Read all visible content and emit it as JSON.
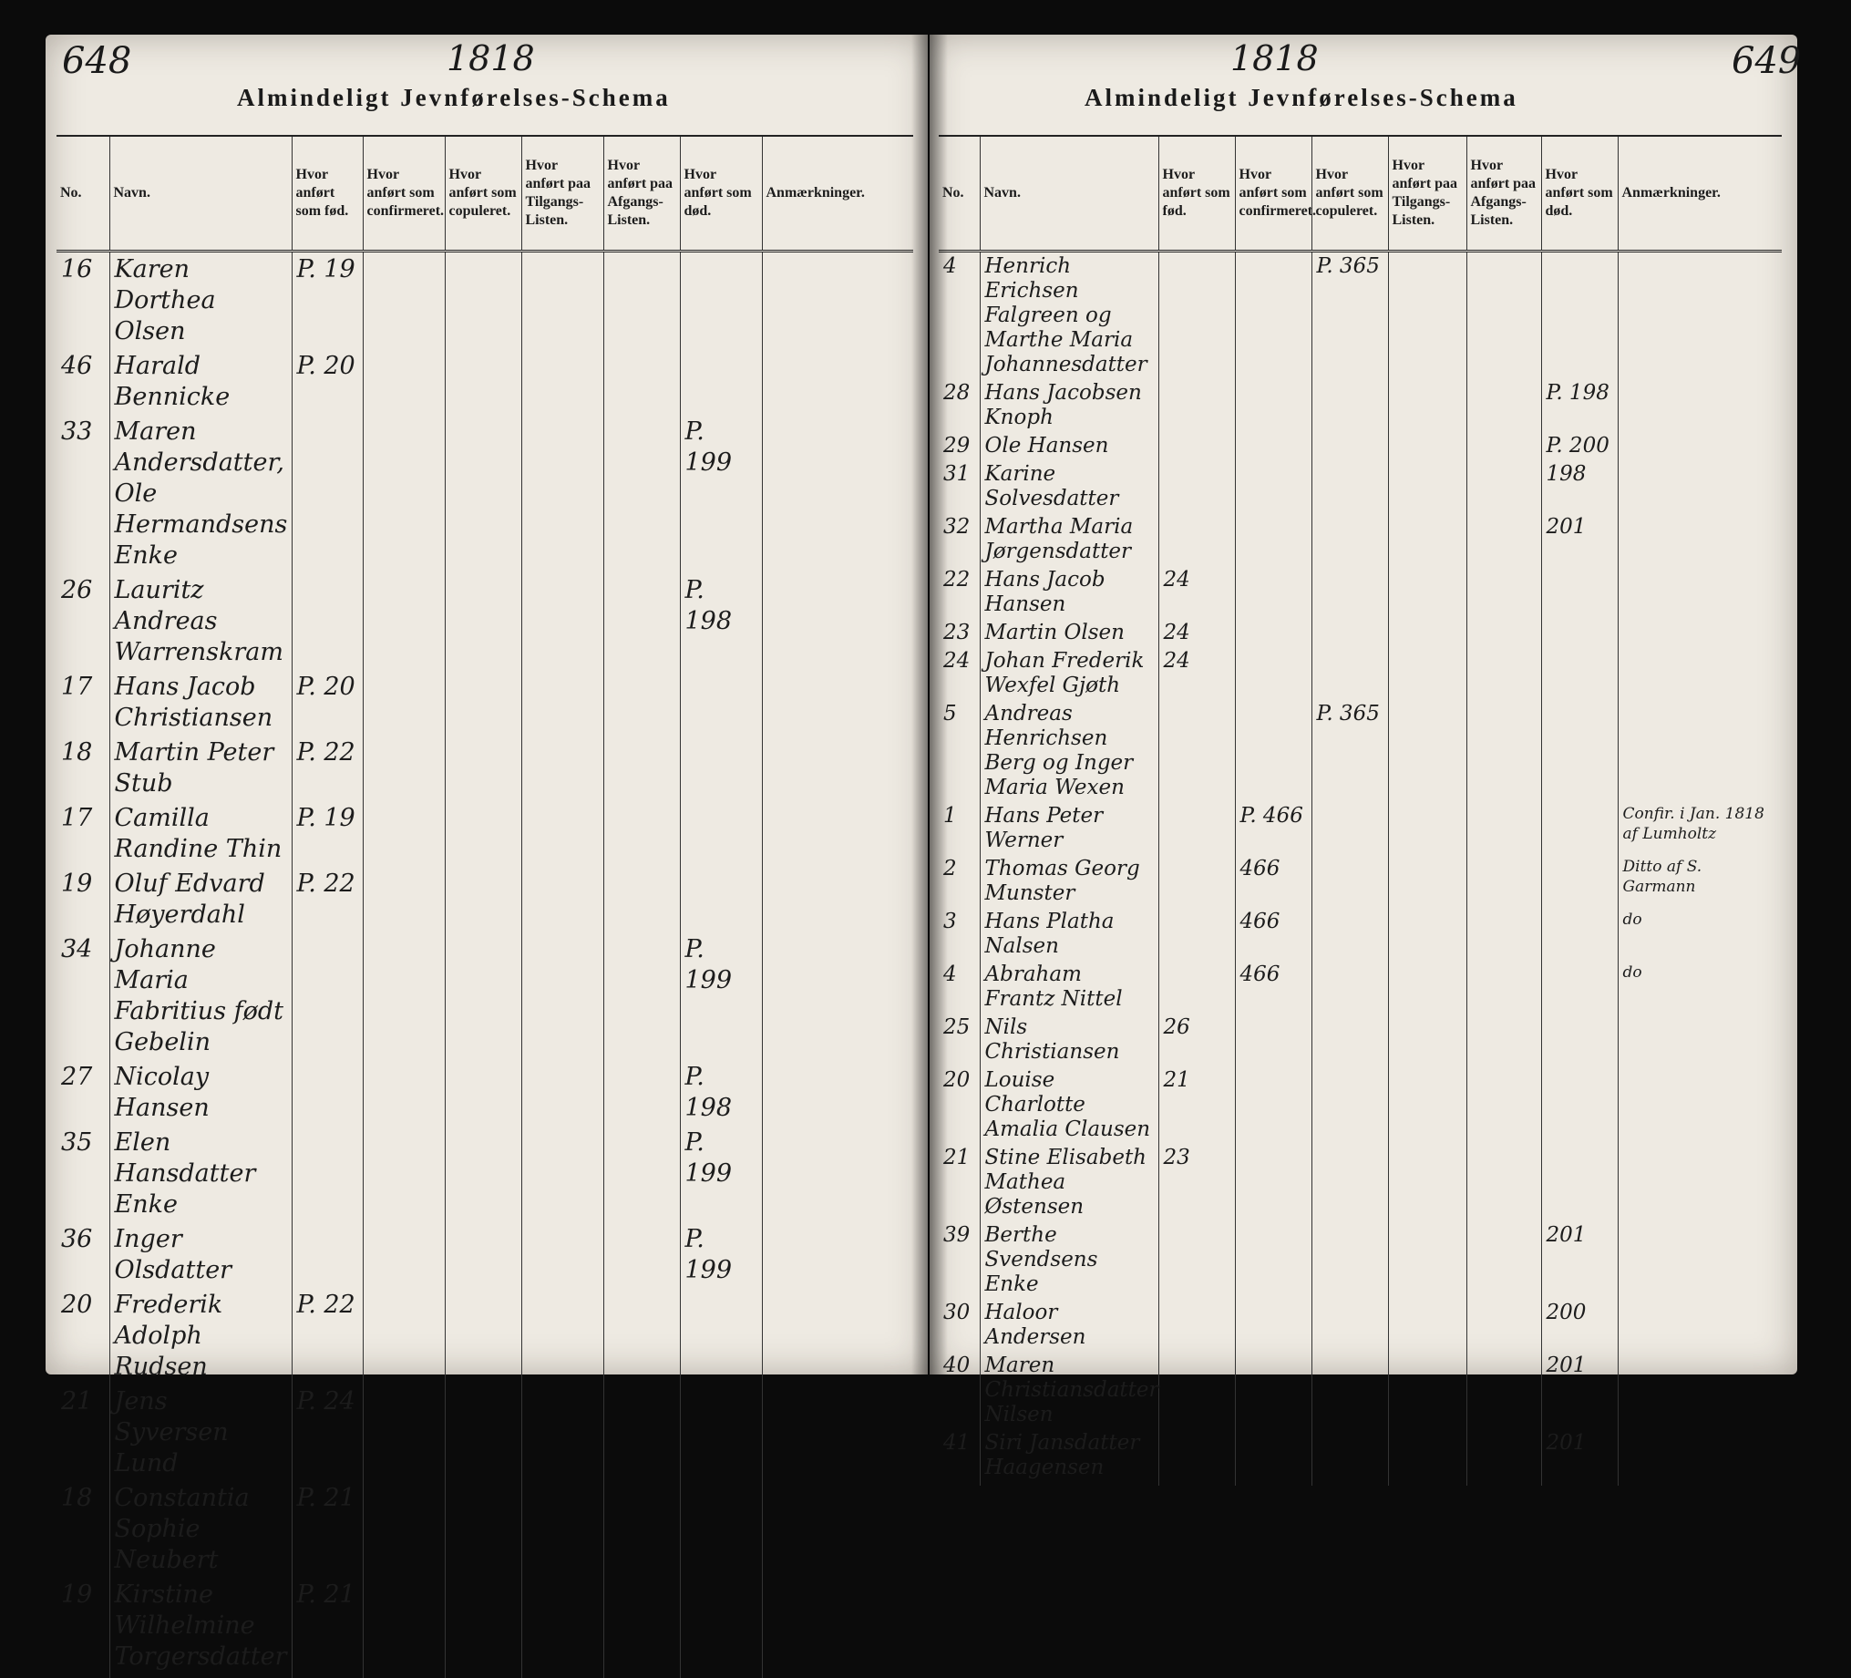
{
  "left_page": {
    "page_number": "648",
    "year": "1818",
    "title": "Almindeligt Jevnførelses-Schema",
    "columns": [
      "No.",
      "Navn.",
      "Hvor anført som fød.",
      "Hvor anført som confirmeret.",
      "Hvor anført som copuleret.",
      "Hvor anført paa Tilgangs-Listen.",
      "Hvor anført paa Afgangs-Listen.",
      "Hvor anført som død.",
      "Anmærkninger."
    ],
    "rows": [
      {
        "no": "16",
        "name": "Karen Dorthea Olsen",
        "born": "P. 19"
      },
      {
        "no": "46",
        "name": "Harald Bennicke",
        "born": "P. 20"
      },
      {
        "no": "33",
        "name": "Maren Andersdatter, Ole Hermandsens Enke",
        "died": "P. 199"
      },
      {
        "no": "26",
        "name": "Lauritz Andreas Warrenskram",
        "died": "P. 198"
      },
      {
        "no": "17",
        "name": "Hans Jacob Christiansen",
        "born": "P. 20"
      },
      {
        "no": "18",
        "name": "Martin Peter Stub",
        "born": "P. 22"
      },
      {
        "no": "17",
        "name": "Camilla Randine Thin",
        "born": "P. 19"
      },
      {
        "no": "19",
        "name": "Oluf Edvard Høyerdahl",
        "born": "P. 22"
      },
      {
        "no": "34",
        "name": "Johanne Maria Fabritius født Gebelin",
        "died": "P. 199"
      },
      {
        "no": "27",
        "name": "Nicolay Hansen",
        "died": "P. 198"
      },
      {
        "no": "35",
        "name": "Elen Hansdatter Enke",
        "died": "P. 199"
      },
      {
        "no": "36",
        "name": "Inger Olsdatter",
        "died": "P. 199"
      },
      {
        "no": "20",
        "name": "Frederik Adolph Rudsen",
        "born": "P. 22"
      },
      {
        "no": "21",
        "name": "Jens Syversen Lund",
        "born": "P. 24"
      },
      {
        "no": "18",
        "name": "Constantia Sophie Neubert",
        "born": "P. 21"
      },
      {
        "no": "19",
        "name": "Kirstine Wilhelmine Torgersdatter",
        "born": "P. 21"
      }
    ]
  },
  "right_page": {
    "page_number": "649",
    "year": "1818",
    "title": "Almindeligt Jevnførelses-Schema",
    "columns": [
      "No.",
      "Navn.",
      "Hvor anført som fød.",
      "Hvor anført som confirmeret.",
      "Hvor anført som copuleret.",
      "Hvor anført paa Tilgangs-Listen.",
      "Hvor anført paa Afgangs-Listen.",
      "Hvor anført som død.",
      "Anmærkninger."
    ],
    "rows": [
      {
        "no": "4",
        "name": "Henrich Erichsen Falgreen og Marthe Maria Johannesdatter",
        "married": "P. 365"
      },
      {
        "no": "28",
        "name": "Hans Jacobsen Knoph",
        "died": "P. 198"
      },
      {
        "no": "29",
        "name": "Ole Hansen",
        "died": "P. 200"
      },
      {
        "no": "31",
        "name": "Karine Solvesdatter",
        "died": "198"
      },
      {
        "no": "32",
        "name": "Martha Maria Jørgensdatter",
        "died": "201"
      },
      {
        "no": "22",
        "name": "Hans Jacob Hansen",
        "born": "24"
      },
      {
        "no": "23",
        "name": "Martin Olsen",
        "born": "24"
      },
      {
        "no": "24",
        "name": "Johan Frederik Wexfel Gjøth",
        "born": "24"
      },
      {
        "no": "5",
        "name": "Andreas Henrichsen Berg og Inger Maria Wexen",
        "married": "P. 365"
      },
      {
        "no": "1",
        "name": "Hans Peter Werner",
        "confirmed": "P. 466",
        "note": "Confir. i Jan. 1818 af Lumholtz"
      },
      {
        "no": "2",
        "name": "Thomas Georg Munster",
        "confirmed": "466",
        "note": "Ditto af S. Garmann"
      },
      {
        "no": "3",
        "name": "Hans Platha Nalsen",
        "confirmed": "466",
        "note": "do"
      },
      {
        "no": "4",
        "name": "Abraham Frantz Nittel",
        "confirmed": "466",
        "note": "do"
      },
      {
        "no": "25",
        "name": "Nils Christiansen",
        "born": "26"
      },
      {
        "no": "20",
        "name": "Louise Charlotte Amalia Clausen",
        "born": "21"
      },
      {
        "no": "21",
        "name": "Stine Elisabeth Mathea Østensen",
        "born": "23"
      },
      {
        "no": "39",
        "name": "Berthe Svendsens Enke",
        "died": "201"
      },
      {
        "no": "30",
        "name": "Haloor Andersen",
        "died": "200"
      },
      {
        "no": "40",
        "name": "Maren Christiansdatter Nilsen",
        "died": "201"
      },
      {
        "no": "41",
        "name": "Siri Jansdatter Haagensen",
        "died": "201"
      }
    ]
  }
}
